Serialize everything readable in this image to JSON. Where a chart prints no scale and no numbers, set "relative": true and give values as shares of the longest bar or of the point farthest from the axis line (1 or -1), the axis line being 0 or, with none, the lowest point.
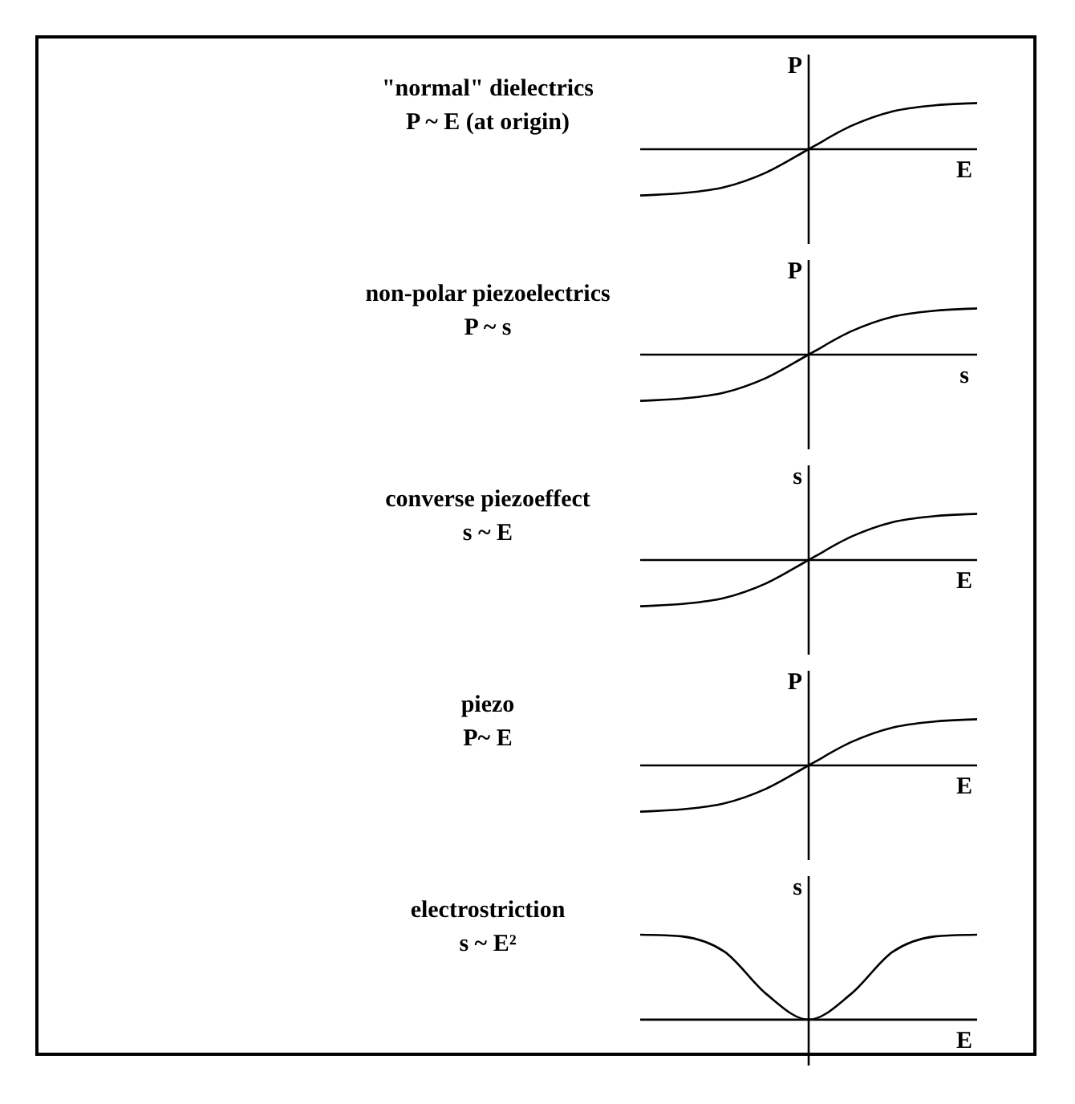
{
  "chart_data": [
    {
      "type": "line",
      "title": "\"normal\" dielectrics",
      "subtitle": "P ~ E (at origin)",
      "xlabel": "E",
      "ylabel": "P",
      "relative": true,
      "marker": "none",
      "color": "#000000",
      "categories": [
        null,
        null,
        null,
        null,
        null,
        null,
        null,
        null,
        null
      ],
      "values": [
        -1,
        -0.95,
        -0.82,
        -0.5,
        0,
        0.5,
        0.82,
        0.95,
        1
      ]
    },
    {
      "type": "line",
      "title": "non-polar piezoelectrics",
      "subtitle": "P ~ s",
      "xlabel": "s",
      "ylabel": "P",
      "relative": true,
      "marker": "none",
      "color": "#000000",
      "categories": [
        null,
        null,
        null,
        null,
        null,
        null,
        null,
        null,
        null
      ],
      "values": [
        -1,
        -0.95,
        -0.82,
        -0.5,
        0,
        0.5,
        0.82,
        0.95,
        1
      ]
    },
    {
      "type": "line",
      "title": "converse piezoeffect",
      "subtitle": "s ~ E",
      "xlabel": "E",
      "ylabel": "s",
      "relative": true,
      "marker": "none",
      "color": "#000000",
      "categories": [
        null,
        null,
        null,
        null,
        null,
        null,
        null,
        null,
        null
      ],
      "values": [
        -1,
        -0.95,
        -0.82,
        -0.5,
        0,
        0.5,
        0.82,
        0.95,
        1
      ]
    },
    {
      "type": "line",
      "title": "piezo",
      "subtitle": "P~ E",
      "xlabel": "E",
      "ylabel": "P",
      "relative": true,
      "marker": "none",
      "color": "#000000",
      "categories": [
        null,
        null,
        null,
        null,
        null,
        null,
        null,
        null,
        null
      ],
      "values": [
        -1,
        -0.95,
        -0.82,
        -0.5,
        0,
        0.5,
        0.82,
        0.95,
        1
      ]
    },
    {
      "type": "line",
      "title": "electrostriction",
      "subtitle": "s ~ E²",
      "xlabel": "E",
      "ylabel": "s",
      "relative": true,
      "marker": "none",
      "color": "#000000",
      "categories": [
        null,
        null,
        null,
        null,
        null,
        null,
        null,
        null,
        null
      ],
      "values": [
        1,
        0.98,
        0.8,
        0.3,
        0,
        0.3,
        0.8,
        0.98,
        1
      ]
    }
  ]
}
